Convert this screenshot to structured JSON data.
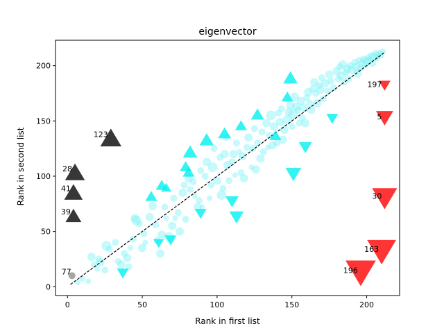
{
  "chart_data": {
    "type": "scatter",
    "title": "eigenvector",
    "xlabel": "Rank in first list",
    "ylabel": "Rank in second list",
    "xlim": [
      -8,
      222
    ],
    "ylim": [
      -8,
      223
    ],
    "xticks": [
      0,
      50,
      100,
      150,
      200
    ],
    "yticks": [
      0,
      50,
      100,
      150,
      200
    ],
    "grid": false,
    "colors": {
      "bubble": "#7ff2f7",
      "up_marker": "#00f0f0",
      "down_marker": "#00f0f0",
      "highlight_up": "#262626",
      "highlight_down": "#ff1f1f",
      "small_point": "#7f7f7f",
      "diagonal": "#000000"
    },
    "diagonal": {
      "x": [
        2,
        212
      ],
      "y": [
        2,
        212
      ]
    },
    "bubbles": [
      [
        7,
        4,
        4
      ],
      [
        10,
        7,
        4
      ],
      [
        14,
        5,
        4
      ],
      [
        16,
        27,
        6
      ],
      [
        18,
        20,
        5
      ],
      [
        20,
        16,
        4
      ],
      [
        21,
        25,
        5
      ],
      [
        22,
        22,
        6
      ],
      [
        25,
        15,
        5
      ],
      [
        26,
        37,
        7
      ],
      [
        28,
        34,
        5
      ],
      [
        32,
        40,
        5
      ],
      [
        34,
        23,
        5
      ],
      [
        36,
        20,
        6
      ],
      [
        38,
        30,
        5
      ],
      [
        40,
        26,
        6
      ],
      [
        41,
        18,
        5
      ],
      [
        42,
        35,
        4
      ],
      [
        44,
        43,
        5
      ],
      [
        45,
        62,
        6
      ],
      [
        46,
        60,
        7
      ],
      [
        48,
        57,
        5
      ],
      [
        50,
        35,
        6
      ],
      [
        51,
        48,
        5
      ],
      [
        52,
        40,
        4
      ],
      [
        55,
        63,
        6
      ],
      [
        57,
        73,
        6
      ],
      [
        59,
        56,
        5
      ],
      [
        60,
        42,
        5
      ],
      [
        62,
        30,
        6
      ],
      [
        63,
        47,
        6
      ],
      [
        65,
        72,
        5
      ],
      [
        66,
        62,
        4
      ],
      [
        68,
        45,
        7
      ],
      [
        70,
        55,
        6
      ],
      [
        71,
        80,
        5
      ],
      [
        72,
        62,
        4
      ],
      [
        74,
        67,
        5
      ],
      [
        75,
        50,
        6
      ],
      [
        77,
        85,
        6
      ],
      [
        78,
        92,
        5
      ],
      [
        79,
        61,
        5
      ],
      [
        81,
        98,
        6
      ],
      [
        82,
        88,
        5
      ],
      [
        84,
        95,
        5
      ],
      [
        85,
        82,
        4
      ],
      [
        87,
        72,
        6
      ],
      [
        88,
        78,
        5
      ],
      [
        89,
        105,
        5
      ],
      [
        90,
        72,
        4
      ],
      [
        92,
        100,
        5
      ],
      [
        93,
        113,
        6
      ],
      [
        95,
        80,
        4
      ],
      [
        96,
        92,
        5
      ],
      [
        97,
        108,
        7
      ],
      [
        98,
        125,
        5
      ],
      [
        100,
        96,
        6
      ],
      [
        102,
        117,
        5
      ],
      [
        103,
        83,
        7
      ],
      [
        104,
        89,
        5
      ],
      [
        105,
        120,
        6
      ],
      [
        106,
        135,
        5
      ],
      [
        107,
        110,
        6
      ],
      [
        108,
        96,
        5
      ],
      [
        110,
        113,
        5
      ],
      [
        111,
        120,
        6
      ],
      [
        112,
        101,
        4
      ],
      [
        113,
        130,
        5
      ],
      [
        115,
        122,
        4
      ],
      [
        116,
        103,
        5
      ],
      [
        117,
        118,
        6
      ],
      [
        118,
        98,
        6
      ],
      [
        120,
        126,
        5
      ],
      [
        121,
        135,
        6
      ],
      [
        123,
        108,
        4
      ],
      [
        124,
        125,
        5
      ],
      [
        125,
        143,
        5
      ],
      [
        126,
        106,
        6
      ],
      [
        127,
        130,
        5
      ],
      [
        129,
        116,
        6
      ],
      [
        130,
        140,
        5
      ],
      [
        131,
        122,
        5
      ],
      [
        133,
        148,
        6
      ],
      [
        134,
        126,
        4
      ],
      [
        135,
        137,
        5
      ],
      [
        136,
        155,
        7
      ],
      [
        137,
        128,
        6
      ],
      [
        138,
        145,
        6
      ],
      [
        140,
        130,
        5
      ],
      [
        141,
        157,
        5
      ],
      [
        142,
        149,
        6
      ],
      [
        143,
        161,
        5
      ],
      [
        144,
        133,
        6
      ],
      [
        145,
        142,
        6
      ],
      [
        147,
        151,
        7
      ],
      [
        148,
        158,
        6
      ],
      [
        149,
        164,
        6
      ],
      [
        150,
        145,
        5
      ],
      [
        151,
        156,
        7
      ],
      [
        152,
        172,
        6
      ],
      [
        153,
        163,
        6
      ],
      [
        154,
        160,
        5
      ],
      [
        155,
        148,
        5
      ],
      [
        156,
        168,
        6
      ],
      [
        157,
        153,
        5
      ],
      [
        158,
        162,
        6
      ],
      [
        159,
        148,
        6
      ],
      [
        160,
        171,
        5
      ],
      [
        161,
        176,
        6
      ],
      [
        162,
        166,
        5
      ],
      [
        163,
        160,
        6
      ],
      [
        164,
        179,
        5
      ],
      [
        165,
        185,
        6
      ],
      [
        166,
        175,
        5
      ],
      [
        167,
        166,
        6
      ],
      [
        168,
        182,
        5
      ],
      [
        169,
        178,
        6
      ],
      [
        170,
        189,
        5
      ],
      [
        171,
        170,
        5
      ],
      [
        172,
        184,
        6
      ],
      [
        174,
        177,
        5
      ],
      [
        175,
        192,
        6
      ],
      [
        176,
        186,
        5
      ],
      [
        178,
        180,
        5
      ],
      [
        180,
        195,
        6
      ],
      [
        181,
        188,
        5
      ],
      [
        182,
        199,
        5
      ],
      [
        183,
        191,
        6
      ],
      [
        184,
        201,
        6
      ],
      [
        185,
        185,
        5
      ],
      [
        186,
        194,
        5
      ],
      [
        187,
        197,
        6
      ],
      [
        188,
        188,
        5
      ],
      [
        189,
        200,
        5
      ],
      [
        190,
        196,
        6
      ],
      [
        192,
        203,
        5
      ],
      [
        193,
        199,
        6
      ],
      [
        194,
        193,
        6
      ],
      [
        195,
        205,
        5
      ],
      [
        196,
        198,
        5
      ],
      [
        197,
        202,
        6
      ],
      [
        198,
        206,
        5
      ],
      [
        199,
        201,
        5
      ],
      [
        200,
        204,
        6
      ],
      [
        201,
        207,
        5
      ],
      [
        202,
        205,
        5
      ],
      [
        203,
        209,
        5
      ],
      [
        204,
        202,
        5
      ],
      [
        205,
        208,
        6
      ],
      [
        206,
        211,
        5
      ],
      [
        207,
        207,
        5
      ],
      [
        208,
        210,
        5
      ],
      [
        209,
        212,
        4
      ],
      [
        210,
        209,
        4
      ],
      [
        211,
        213,
        4
      ]
    ],
    "up_markers": [
      [
        56,
        81,
        9
      ],
      [
        63,
        91,
        9
      ],
      [
        66,
        89,
        8
      ],
      [
        79,
        108,
        9
      ],
      [
        81,
        103,
        9
      ],
      [
        82,
        121,
        11
      ],
      [
        93,
        132,
        11
      ],
      [
        105,
        138,
        10
      ],
      [
        116,
        145,
        9
      ],
      [
        127,
        155,
        10
      ],
      [
        139,
        136,
        9
      ],
      [
        147,
        171,
        9
      ],
      [
        149,
        188,
        11
      ]
    ],
    "down_markers": [
      [
        37,
        13,
        9
      ],
      [
        61,
        40,
        8
      ],
      [
        69,
        43,
        9
      ],
      [
        89,
        67,
        9
      ],
      [
        110,
        78,
        10
      ],
      [
        113,
        64,
        11
      ],
      [
        151,
        103,
        12
      ],
      [
        159,
        127,
        10
      ],
      [
        177,
        153,
        9
      ]
    ],
    "highlight_up": [
      [
        29,
        133,
        16,
        "123"
      ],
      [
        5,
        102,
        15,
        "28"
      ],
      [
        4,
        84,
        14,
        "41"
      ],
      [
        4,
        63,
        12,
        "39"
      ]
    ],
    "highlight_down": [
      [
        212,
        183,
        9,
        "197"
      ],
      [
        212,
        154,
        13,
        "5"
      ],
      [
        212,
        82,
        19,
        "30"
      ],
      [
        210,
        34,
        22,
        "163"
      ],
      [
        196,
        15,
        23,
        "196"
      ]
    ],
    "small_points": [
      [
        3,
        10,
        5,
        "77"
      ]
    ]
  }
}
